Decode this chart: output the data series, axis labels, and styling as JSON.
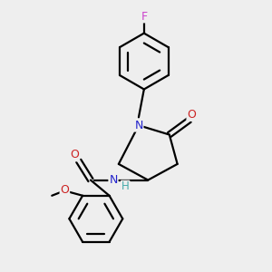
{
  "bg_color": "#eeeeee",
  "atom_colors": {
    "F": "#cc44cc",
    "N": "#2222cc",
    "O": "#cc2222",
    "H": "#44aaaa",
    "C": "#000000"
  },
  "bond_color": "#000000",
  "bond_width": 1.6,
  "figsize": [
    3.0,
    3.0
  ],
  "dpi": 100
}
